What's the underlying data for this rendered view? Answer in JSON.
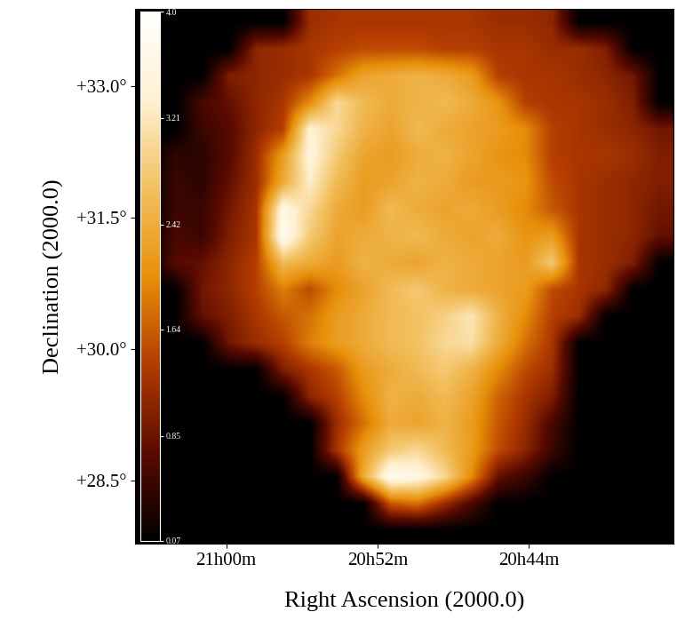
{
  "chart_data": {
    "type": "heatmap",
    "xlabel": "Right Ascension (2000.0)",
    "ylabel": "Declination (2000.0)",
    "xlim": [
      21.08,
      20.606
    ],
    "xticks": [
      {
        "value": 21.0,
        "label": "21h00m"
      },
      {
        "value": 20.866667,
        "label": "20h52m"
      },
      {
        "value": 20.733333,
        "label": "20h44m"
      }
    ],
    "ylim": [
      27.78,
      33.88
    ],
    "yticks": [
      {
        "value": 28.5,
        "label": "+28.5°"
      },
      {
        "value": 30.0,
        "label": "+30.0°"
      },
      {
        "value": 31.5,
        "label": "+31.5°"
      },
      {
        "value": 33.0,
        "label": "+33.0°"
      }
    ],
    "colorbar_range": [
      0.07,
      4.0
    ],
    "colorbar_ticks": [
      0.07,
      0.85,
      1.64,
      2.42,
      3.21,
      4.0
    ],
    "cells": [
      [
        0.07,
        0.07,
        0.07,
        0.07,
        0.07,
        0.07,
        1.2,
        1.3,
        1.3,
        1.3,
        1.3,
        1.3,
        1.3,
        1.2,
        1.2,
        1.1,
        0.07,
        0.07,
        0.07,
        0.07
      ],
      [
        0.07,
        0.07,
        0.07,
        0.07,
        1.1,
        1.2,
        1.3,
        1.4,
        1.5,
        1.5,
        1.5,
        1.4,
        1.4,
        1.3,
        1.3,
        1.2,
        1.2,
        1.0,
        0.07,
        0.07
      ],
      [
        0.07,
        0.07,
        0.07,
        1.0,
        1.1,
        1.2,
        1.3,
        1.8,
        2.3,
        2.4,
        2.5,
        2.4,
        2.2,
        1.4,
        1.3,
        1.3,
        1.2,
        1.1,
        0.9,
        0.07
      ],
      [
        0.07,
        0.07,
        0.6,
        0.8,
        1.1,
        1.3,
        2.0,
        3.0,
        2.6,
        2.4,
        2.5,
        2.6,
        2.4,
        2.1,
        1.4,
        1.3,
        1.3,
        1.2,
        1.0,
        0.07
      ],
      [
        0.07,
        0.07,
        0.5,
        0.7,
        1.1,
        1.4,
        3.4,
        3.0,
        2.5,
        2.3,
        2.6,
        2.4,
        2.3,
        2.2,
        2.0,
        1.4,
        1.3,
        1.2,
        1.1,
        0.9
      ],
      [
        0.07,
        0.4,
        0.4,
        0.7,
        1.2,
        2.2,
        3.5,
        2.8,
        2.3,
        2.2,
        2.4,
        2.5,
        2.3,
        2.1,
        2.0,
        1.4,
        1.3,
        1.3,
        1.2,
        1.0
      ],
      [
        0.07,
        0.5,
        0.4,
        0.8,
        1.2,
        2.4,
        3.3,
        2.6,
        2.2,
        2.3,
        2.5,
        2.4,
        2.2,
        2.2,
        2.1,
        1.5,
        1.3,
        1.2,
        1.1,
        1.0
      ],
      [
        0.07,
        0.5,
        0.5,
        0.9,
        1.3,
        3.6,
        3.0,
        2.4,
        2.2,
        2.6,
        2.4,
        2.3,
        2.4,
        2.2,
        2.0,
        1.6,
        1.3,
        1.2,
        1.1,
        0.9
      ],
      [
        0.07,
        0.6,
        0.5,
        1.0,
        1.3,
        3.8,
        2.8,
        2.3,
        2.4,
        2.5,
        2.6,
        2.4,
        2.3,
        2.4,
        2.1,
        2.2,
        1.3,
        1.2,
        1.1,
        0.8
      ],
      [
        0.07,
        0.7,
        0.8,
        1.1,
        1.4,
        2.6,
        2.4,
        2.2,
        2.5,
        2.4,
        2.3,
        2.5,
        2.4,
        2.3,
        2.2,
        2.8,
        1.3,
        1.2,
        1.0,
        0.07
      ],
      [
        0.07,
        0.07,
        0.9,
        1.1,
        1.4,
        1.9,
        1.5,
        2.0,
        2.3,
        2.6,
        2.8,
        2.5,
        2.4,
        2.3,
        2.2,
        1.5,
        1.3,
        1.1,
        0.07,
        0.07
      ],
      [
        0.07,
        0.07,
        0.8,
        1.0,
        1.3,
        1.6,
        1.8,
        2.2,
        2.4,
        2.6,
        2.7,
        2.9,
        3.2,
        2.5,
        2.0,
        1.4,
        1.2,
        0.07,
        0.07,
        0.07
      ],
      [
        0.07,
        0.07,
        0.07,
        0.9,
        1.2,
        1.4,
        1.9,
        2.2,
        2.4,
        2.6,
        2.7,
        3.0,
        3.1,
        2.4,
        1.8,
        1.3,
        0.07,
        0.07,
        0.07,
        0.07
      ],
      [
        0.07,
        0.07,
        0.07,
        0.07,
        0.07,
        1.0,
        1.3,
        1.6,
        2.2,
        2.4,
        2.6,
        2.8,
        2.5,
        2.0,
        1.5,
        1.2,
        0.07,
        0.07,
        0.07,
        0.07
      ],
      [
        0.07,
        0.07,
        0.07,
        0.07,
        0.07,
        0.07,
        1.1,
        1.4,
        2.0,
        2.5,
        2.4,
        2.6,
        2.3,
        1.7,
        1.3,
        1.0,
        0.07,
        0.07,
        0.07,
        0.07
      ],
      [
        0.07,
        0.07,
        0.07,
        0.07,
        0.07,
        0.07,
        0.07,
        1.2,
        1.8,
        2.4,
        2.3,
        2.5,
        2.2,
        1.6,
        1.2,
        0.6,
        0.07,
        0.07,
        0.07,
        0.07
      ],
      [
        0.07,
        0.07,
        0.07,
        0.07,
        0.07,
        0.07,
        0.07,
        1.3,
        2.2,
        2.8,
        3.0,
        2.6,
        2.2,
        1.5,
        1.1,
        0.5,
        0.07,
        0.07,
        0.07,
        0.07
      ],
      [
        0.07,
        0.07,
        0.07,
        0.07,
        0.07,
        0.07,
        0.07,
        0.07,
        2.4,
        3.8,
        3.6,
        3.0,
        2.0,
        0.8,
        0.5,
        0.07,
        0.07,
        0.07,
        0.07,
        0.07
      ],
      [
        0.07,
        0.07,
        0.07,
        0.07,
        0.07,
        0.07,
        0.07,
        0.07,
        0.07,
        1.6,
        1.8,
        1.2,
        0.6,
        0.07,
        0.07,
        0.07,
        0.07,
        0.07,
        0.07,
        0.07
      ],
      [
        0.07,
        0.07,
        0.07,
        0.07,
        0.07,
        0.07,
        0.07,
        0.07,
        0.07,
        0.07,
        0.07,
        0.07,
        0.07,
        0.07,
        0.07,
        0.07,
        0.07,
        0.07,
        0.07,
        0.07
      ]
    ]
  }
}
